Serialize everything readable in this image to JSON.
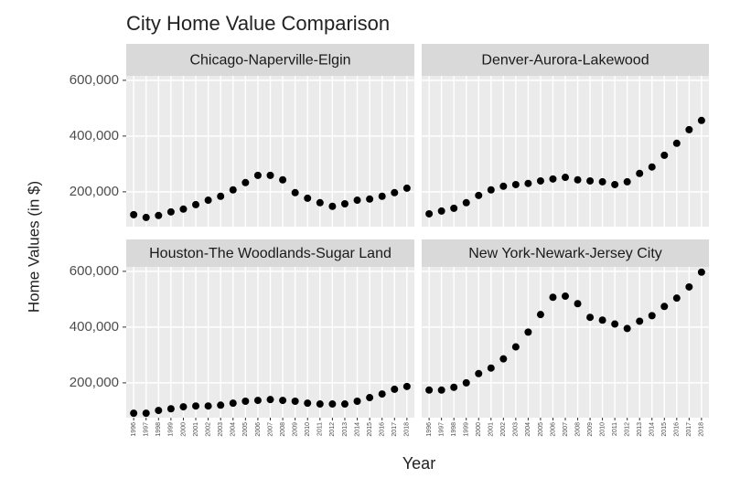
{
  "title": "City Home Value Comparison",
  "x_label": "Year",
  "y_label": "Home Values (in $)",
  "chart_data": [
    {
      "type": "scatter",
      "title": "Chicago-Naperville-Elgin",
      "color": "#000000",
      "grid": true,
      "x": [
        1996,
        1997,
        1998,
        1999,
        2000,
        2001,
        2002,
        2003,
        2004,
        2005,
        2006,
        2007,
        2008,
        2009,
        2010,
        2011,
        2012,
        2013,
        2014,
        2015,
        2016,
        2017,
        2018
      ],
      "values": [
        118000,
        108000,
        115000,
        128000,
        138000,
        154000,
        170000,
        184000,
        207000,
        233000,
        259000,
        259000,
        243000,
        197000,
        177000,
        161000,
        148000,
        157000,
        170000,
        174000,
        184000,
        197000,
        213000
      ],
      "xlim": [
        1995.4,
        2018.6
      ],
      "ylim": [
        75000,
        616000
      ],
      "xticks": [
        1996,
        1997,
        1998,
        1999,
        2000,
        2001,
        2002,
        2003,
        2004,
        2005,
        2006,
        2007,
        2008,
        2009,
        2010,
        2011,
        2012,
        2013,
        2014,
        2015,
        2016,
        2017,
        2018
      ],
      "yticks": [
        {
          "value": 200000,
          "label": "200,000"
        },
        {
          "value": 400000,
          "label": "400,000"
        },
        {
          "value": 600000,
          "label": "600,000"
        }
      ]
    },
    {
      "type": "scatter",
      "title": "Denver-Aurora-Lakewood",
      "color": "#000000",
      "grid": true,
      "x": [
        1996,
        1997,
        1998,
        1999,
        2000,
        2001,
        2002,
        2003,
        2004,
        2005,
        2006,
        2007,
        2008,
        2009,
        2010,
        2011,
        2012,
        2013,
        2014,
        2015,
        2016,
        2017,
        2018
      ],
      "values": [
        121000,
        131000,
        141000,
        161000,
        187000,
        207000,
        220000,
        226000,
        230000,
        239000,
        246000,
        252000,
        243000,
        239000,
        236000,
        226000,
        236000,
        266000,
        289000,
        331000,
        374000,
        423000,
        456000
      ],
      "xlim": [
        1995.4,
        2018.6
      ],
      "ylim": [
        75000,
        616000
      ],
      "xticks": [
        1996,
        1997,
        1998,
        1999,
        2000,
        2001,
        2002,
        2003,
        2004,
        2005,
        2006,
        2007,
        2008,
        2009,
        2010,
        2011,
        2012,
        2013,
        2014,
        2015,
        2016,
        2017,
        2018
      ],
      "yticks": [
        {
          "value": 200000,
          "label": "200,000"
        },
        {
          "value": 400000,
          "label": "400,000"
        },
        {
          "value": 600000,
          "label": "600,000"
        }
      ]
    },
    {
      "type": "scatter",
      "title": "Houston-The Woodlands-Sugar Land",
      "color": "#000000",
      "grid": true,
      "x": [
        1996,
        1997,
        1998,
        1999,
        2000,
        2001,
        2002,
        2003,
        2004,
        2005,
        2006,
        2007,
        2008,
        2009,
        2010,
        2011,
        2012,
        2013,
        2014,
        2015,
        2016,
        2017,
        2018
      ],
      "values": [
        91000,
        91000,
        101000,
        107000,
        114000,
        117000,
        117000,
        120000,
        127000,
        134000,
        137000,
        140000,
        137000,
        134000,
        127000,
        124000,
        124000,
        124000,
        134000,
        147000,
        160000,
        177000,
        187000
      ],
      "xlim": [
        1995.4,
        2018.6
      ],
      "ylim": [
        75000,
        616000
      ],
      "xticks": [
        1996,
        1997,
        1998,
        1999,
        2000,
        2001,
        2002,
        2003,
        2004,
        2005,
        2006,
        2007,
        2008,
        2009,
        2010,
        2011,
        2012,
        2013,
        2014,
        2015,
        2016,
        2017,
        2018
      ],
      "yticks": [
        {
          "value": 200000,
          "label": "200,000"
        },
        {
          "value": 400000,
          "label": "400,000"
        },
        {
          "value": 600000,
          "label": "600,000"
        }
      ]
    },
    {
      "type": "scatter",
      "title": "New York-Newark-Jersey City",
      "color": "#000000",
      "grid": true,
      "x": [
        1996,
        1997,
        1998,
        1999,
        2000,
        2001,
        2002,
        2003,
        2004,
        2005,
        2006,
        2007,
        2008,
        2009,
        2010,
        2011,
        2012,
        2013,
        2014,
        2015,
        2016,
        2017,
        2018
      ],
      "values": [
        174000,
        174000,
        184000,
        200000,
        233000,
        253000,
        286000,
        329000,
        382000,
        445000,
        507000,
        511000,
        484000,
        435000,
        425000,
        411000,
        395000,
        421000,
        441000,
        474000,
        504000,
        544000,
        597000
      ],
      "xlim": [
        1995.4,
        2018.6
      ],
      "ylim": [
        75000,
        616000
      ],
      "xticks": [
        1996,
        1997,
        1998,
        1999,
        2000,
        2001,
        2002,
        2003,
        2004,
        2005,
        2006,
        2007,
        2008,
        2009,
        2010,
        2011,
        2012,
        2013,
        2014,
        2015,
        2016,
        2017,
        2018
      ],
      "yticks": [
        {
          "value": 200000,
          "label": "200,000"
        },
        {
          "value": 400000,
          "label": "400,000"
        },
        {
          "value": 600000,
          "label": "600,000"
        }
      ]
    }
  ]
}
